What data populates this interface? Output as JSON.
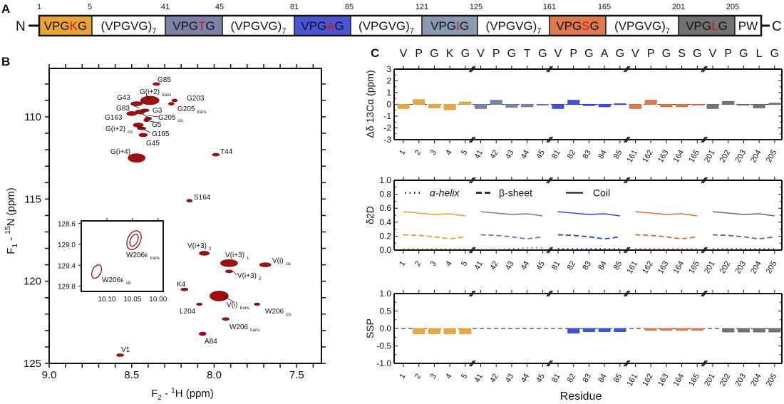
{
  "panel_labels": {
    "a": "A",
    "b": "B",
    "c": "C"
  },
  "panel_a": {
    "n_label": "N",
    "c_label": "C",
    "numbers": [
      "1",
      "5",
      "41",
      "45",
      "81",
      "85",
      "121",
      "125",
      "161",
      "165",
      "201",
      "205"
    ],
    "highlight_color": "#d01818",
    "segments": [
      {
        "pre": "VPG",
        "hi": "K",
        "post": "G",
        "sub": "",
        "color": "#e8a535"
      },
      {
        "pre": "(VPGVG)",
        "hi": "",
        "post": "",
        "sub": "7",
        "color": "#ffffff"
      },
      {
        "pre": "VPG",
        "hi": "T",
        "post": "G",
        "sub": "",
        "color": "#7d82a8"
      },
      {
        "pre": "(VPGVG)",
        "hi": "",
        "post": "",
        "sub": "7",
        "color": "#ffffff"
      },
      {
        "pre": "VPG",
        "hi": "A",
        "post": "G",
        "sub": "",
        "color": "#4a55d8"
      },
      {
        "pre": "(VPGVG)",
        "hi": "",
        "post": "",
        "sub": "7",
        "color": "#ffffff"
      },
      {
        "pre": "VPG",
        "hi": "I",
        "post": "G",
        "sub": "",
        "color": "#8a9ab2"
      },
      {
        "pre": "(VPGVG)",
        "hi": "",
        "post": "",
        "sub": "7",
        "color": "#ffffff"
      },
      {
        "pre": "VPG",
        "hi": "S",
        "post": "G",
        "sub": "",
        "color": "#e07850"
      },
      {
        "pre": "(VPGVG)",
        "hi": "",
        "post": "",
        "sub": "7",
        "color": "#ffffff"
      },
      {
        "pre": "VPG",
        "hi": "L",
        "post": "G",
        "sub": "",
        "color": "#727272"
      },
      {
        "pre": "PW",
        "hi": "",
        "post": "",
        "sub": "",
        "color": "#ffffff"
      }
    ]
  },
  "chart_data": [
    {
      "type": "scatter",
      "panel": "B",
      "xlabel": {
        "main": "F",
        "sub": "2",
        "mid": " - ",
        "sup": "1",
        "rest": "H  (ppm)"
      },
      "ylabel": {
        "main": "F",
        "sub": "1",
        "mid": " - ",
        "sup": "15",
        "rest": "N  (ppm)"
      },
      "xlim": [
        9.0,
        7.35
      ],
      "ylim": [
        107.05,
        125
      ],
      "xticks": [
        "9.0",
        "8.5",
        "8.0",
        "7.5"
      ],
      "yticks": [
        "110",
        "115",
        "120",
        "125"
      ],
      "peak_color": "#a01010",
      "peaks": [
        {
          "label": "G85",
          "sub": "",
          "h": 8.35,
          "n": 108.0
        },
        {
          "label": "G(i+2)",
          "sub": "trans",
          "h": 8.39,
          "n": 109.0
        },
        {
          "label": "G203",
          "sub": "",
          "h": 8.24,
          "n": 109.0
        },
        {
          "label": "G43",
          "sub": "",
          "h": 8.47,
          "n": 109.2
        },
        {
          "label": "G83",
          "sub": "",
          "h": 8.45,
          "n": 109.7
        },
        {
          "label": "G3",
          "sub": "",
          "h": 8.42,
          "n": 109.6
        },
        {
          "label": "G205",
          "sub": "trans",
          "h": 8.26,
          "n": 109.2
        },
        {
          "label": "G163",
          "sub": "",
          "h": 8.5,
          "n": 109.8
        },
        {
          "label": "G205",
          "sub": "cis",
          "h": 8.4,
          "n": 110.1
        },
        {
          "label": "G5",
          "sub": "",
          "h": 8.41,
          "n": 110.2
        },
        {
          "label": "G(i+2)",
          "sub": "cis",
          "h": 8.46,
          "n": 110.5
        },
        {
          "label": "G165",
          "sub": "",
          "h": 8.44,
          "n": 110.7
        },
        {
          "label": "G45",
          "sub": "",
          "h": 8.43,
          "n": 111.1
        },
        {
          "label": "G(i+4)",
          "sub": "",
          "h": 8.47,
          "n": 112.5
        },
        {
          "label": "T44",
          "sub": "",
          "h": 7.99,
          "n": 112.3
        },
        {
          "label": "S164",
          "sub": "",
          "h": 8.15,
          "n": 115.1
        },
        {
          "label": "V(i+3)",
          "sub": "3",
          "h": 8.06,
          "n": 118.3
        },
        {
          "label": "V(i+3)",
          "sub": "1",
          "h": 7.91,
          "n": 118.9
        },
        {
          "label": "V(i)",
          "sub": "cis",
          "h": 7.69,
          "n": 119.0
        },
        {
          "label": "V(i+3)",
          "sub": "2",
          "h": 7.91,
          "n": 119.4
        },
        {
          "label": "K4",
          "sub": "",
          "h": 8.18,
          "n": 120.5
        },
        {
          "label": "V(i)",
          "sub": "trans",
          "h": 7.97,
          "n": 120.9
        },
        {
          "label": "L204",
          "sub": "",
          "h": 8.09,
          "n": 121.4
        },
        {
          "label": "W206",
          "sub": "cis",
          "h": 7.74,
          "n": 121.4
        },
        {
          "label": "W206",
          "sub": "trans",
          "h": 7.93,
          "n": 122.3
        },
        {
          "label": "A84",
          "sub": "",
          "h": 8.07,
          "n": 123.2
        },
        {
          "label": "V1",
          "sub": "",
          "h": 8.57,
          "n": 124.5
        }
      ],
      "inset": {
        "xlim": [
          10.15,
          9.99
        ],
        "ylim": [
          128.55,
          129.9
        ],
        "xticks": [
          "10.10",
          "10.05",
          "10.00"
        ],
        "yticks": [
          "128.6",
          "129.0",
          "129.4",
          "129.8"
        ],
        "peaks": [
          {
            "label": "W206ε",
            "sub": "trans",
            "h": 10.047,
            "n": 128.92
          },
          {
            "label": "W206ε",
            "sub": "cis",
            "h": 10.12,
            "n": 129.52
          }
        ]
      }
    },
    {
      "type": "bar",
      "panel": "C-top",
      "ylabel": "Δδ 13Cα (ppm)",
      "ylim": [
        -3,
        3
      ],
      "yticks": [
        "3",
        "2",
        "1",
        "0",
        "-1",
        "-2",
        "-3"
      ],
      "groups": [
        {
          "sequence": [
            "V",
            "P",
            "G",
            "K",
            "G"
          ],
          "residues": [
            "1",
            "2",
            "3",
            "4",
            "5"
          ],
          "color": "#e0a030",
          "values": [
            -0.35,
            0.4,
            -0.3,
            -0.45,
            0.2
          ]
        },
        {
          "sequence": [
            "V",
            "P",
            "G",
            "T",
            "G"
          ],
          "residues": [
            "41",
            "42",
            "43",
            "44",
            "45"
          ],
          "color": "#6e78a0",
          "values": [
            -0.35,
            0.35,
            -0.25,
            -0.2,
            0.0
          ]
        },
        {
          "sequence": [
            "V",
            "P",
            "G",
            "A",
            "G"
          ],
          "residues": [
            "81",
            "82",
            "83",
            "84",
            "85"
          ],
          "color": "#3040d0",
          "values": [
            -0.35,
            0.35,
            -0.1,
            -0.2,
            0.05
          ]
        },
        {
          "sequence": [
            "V",
            "P",
            "G",
            "S",
            "G"
          ],
          "residues": [
            "161",
            "162",
            "163",
            "164",
            "165"
          ],
          "color": "#d86a40",
          "values": [
            -0.35,
            0.35,
            -0.2,
            -0.2,
            0.0
          ]
        },
        {
          "sequence": [
            "V",
            "P",
            "G",
            "L",
            "G"
          ],
          "residues": [
            "201",
            "202",
            "203",
            "204",
            "205"
          ],
          "color": "#666666",
          "values": [
            -0.35,
            0.25,
            -0.05,
            -0.3,
            0.1
          ]
        }
      ],
      "sequence_colors": [
        "#d49a2a",
        "#5a6490",
        "#2a36b8",
        "#c0582c",
        "#444444"
      ]
    },
    {
      "type": "line",
      "panel": "C-middle",
      "ylabel": "δ2D",
      "ylim": [
        0,
        1
      ],
      "yticks": [
        "1.0",
        "0.8",
        "0.6",
        "0.4",
        "0.2",
        "0.0"
      ],
      "legend": {
        "helix": "α-helix",
        "sheet": "β-sheet",
        "coil": "Coil"
      },
      "groups": [
        {
          "coil": [
            0.55,
            0.53,
            0.51,
            0.52,
            0.49
          ],
          "sheet": [
            0.22,
            0.21,
            0.19,
            0.16,
            0.19
          ],
          "helix": [
            0.02,
            0.02,
            0.02,
            0.02,
            0.02
          ]
        },
        {
          "coil": [
            0.55,
            0.53,
            0.51,
            0.52,
            0.49
          ],
          "sheet": [
            0.22,
            0.21,
            0.19,
            0.16,
            0.19
          ],
          "helix": [
            0.01,
            0.01,
            0.02,
            0.03,
            0.03
          ]
        },
        {
          "coil": [
            0.55,
            0.53,
            0.51,
            0.52,
            0.49
          ],
          "sheet": [
            0.22,
            0.21,
            0.19,
            0.16,
            0.19
          ],
          "helix": [
            0.02,
            0.02,
            0.02,
            0.02,
            0.02
          ]
        },
        {
          "coil": [
            0.55,
            0.53,
            0.51,
            0.52,
            0.49
          ],
          "sheet": [
            0.22,
            0.21,
            0.19,
            0.16,
            0.19
          ],
          "helix": [
            0.02,
            0.02,
            0.02,
            0.02,
            0.02
          ]
        },
        {
          "coil": [
            0.55,
            0.53,
            0.51,
            0.52,
            0.49
          ],
          "sheet": [
            0.22,
            0.21,
            0.19,
            0.16,
            0.19
          ],
          "helix": [
            0.02,
            0.02,
            0.02,
            0.02,
            0.02
          ]
        }
      ]
    },
    {
      "type": "bar",
      "panel": "C-bottom",
      "ylabel": "SSP",
      "xlabel": "Residue",
      "ylim": [
        -1,
        1
      ],
      "yticks": [
        "1.0",
        "0.5",
        "0.0",
        "-0.5",
        "-1.0"
      ],
      "groups": [
        {
          "values": [
            null,
            -0.15,
            -0.15,
            -0.15,
            -0.15
          ]
        },
        {
          "values": [
            null,
            null,
            null,
            null,
            null
          ]
        },
        {
          "values": [
            null,
            -0.13,
            -0.09,
            -0.09,
            -0.09
          ]
        },
        {
          "values": [
            null,
            -0.05,
            -0.05,
            -0.05,
            -0.05
          ]
        },
        {
          "values": [
            null,
            -0.1,
            -0.1,
            -0.1,
            -0.1
          ]
        }
      ]
    }
  ]
}
